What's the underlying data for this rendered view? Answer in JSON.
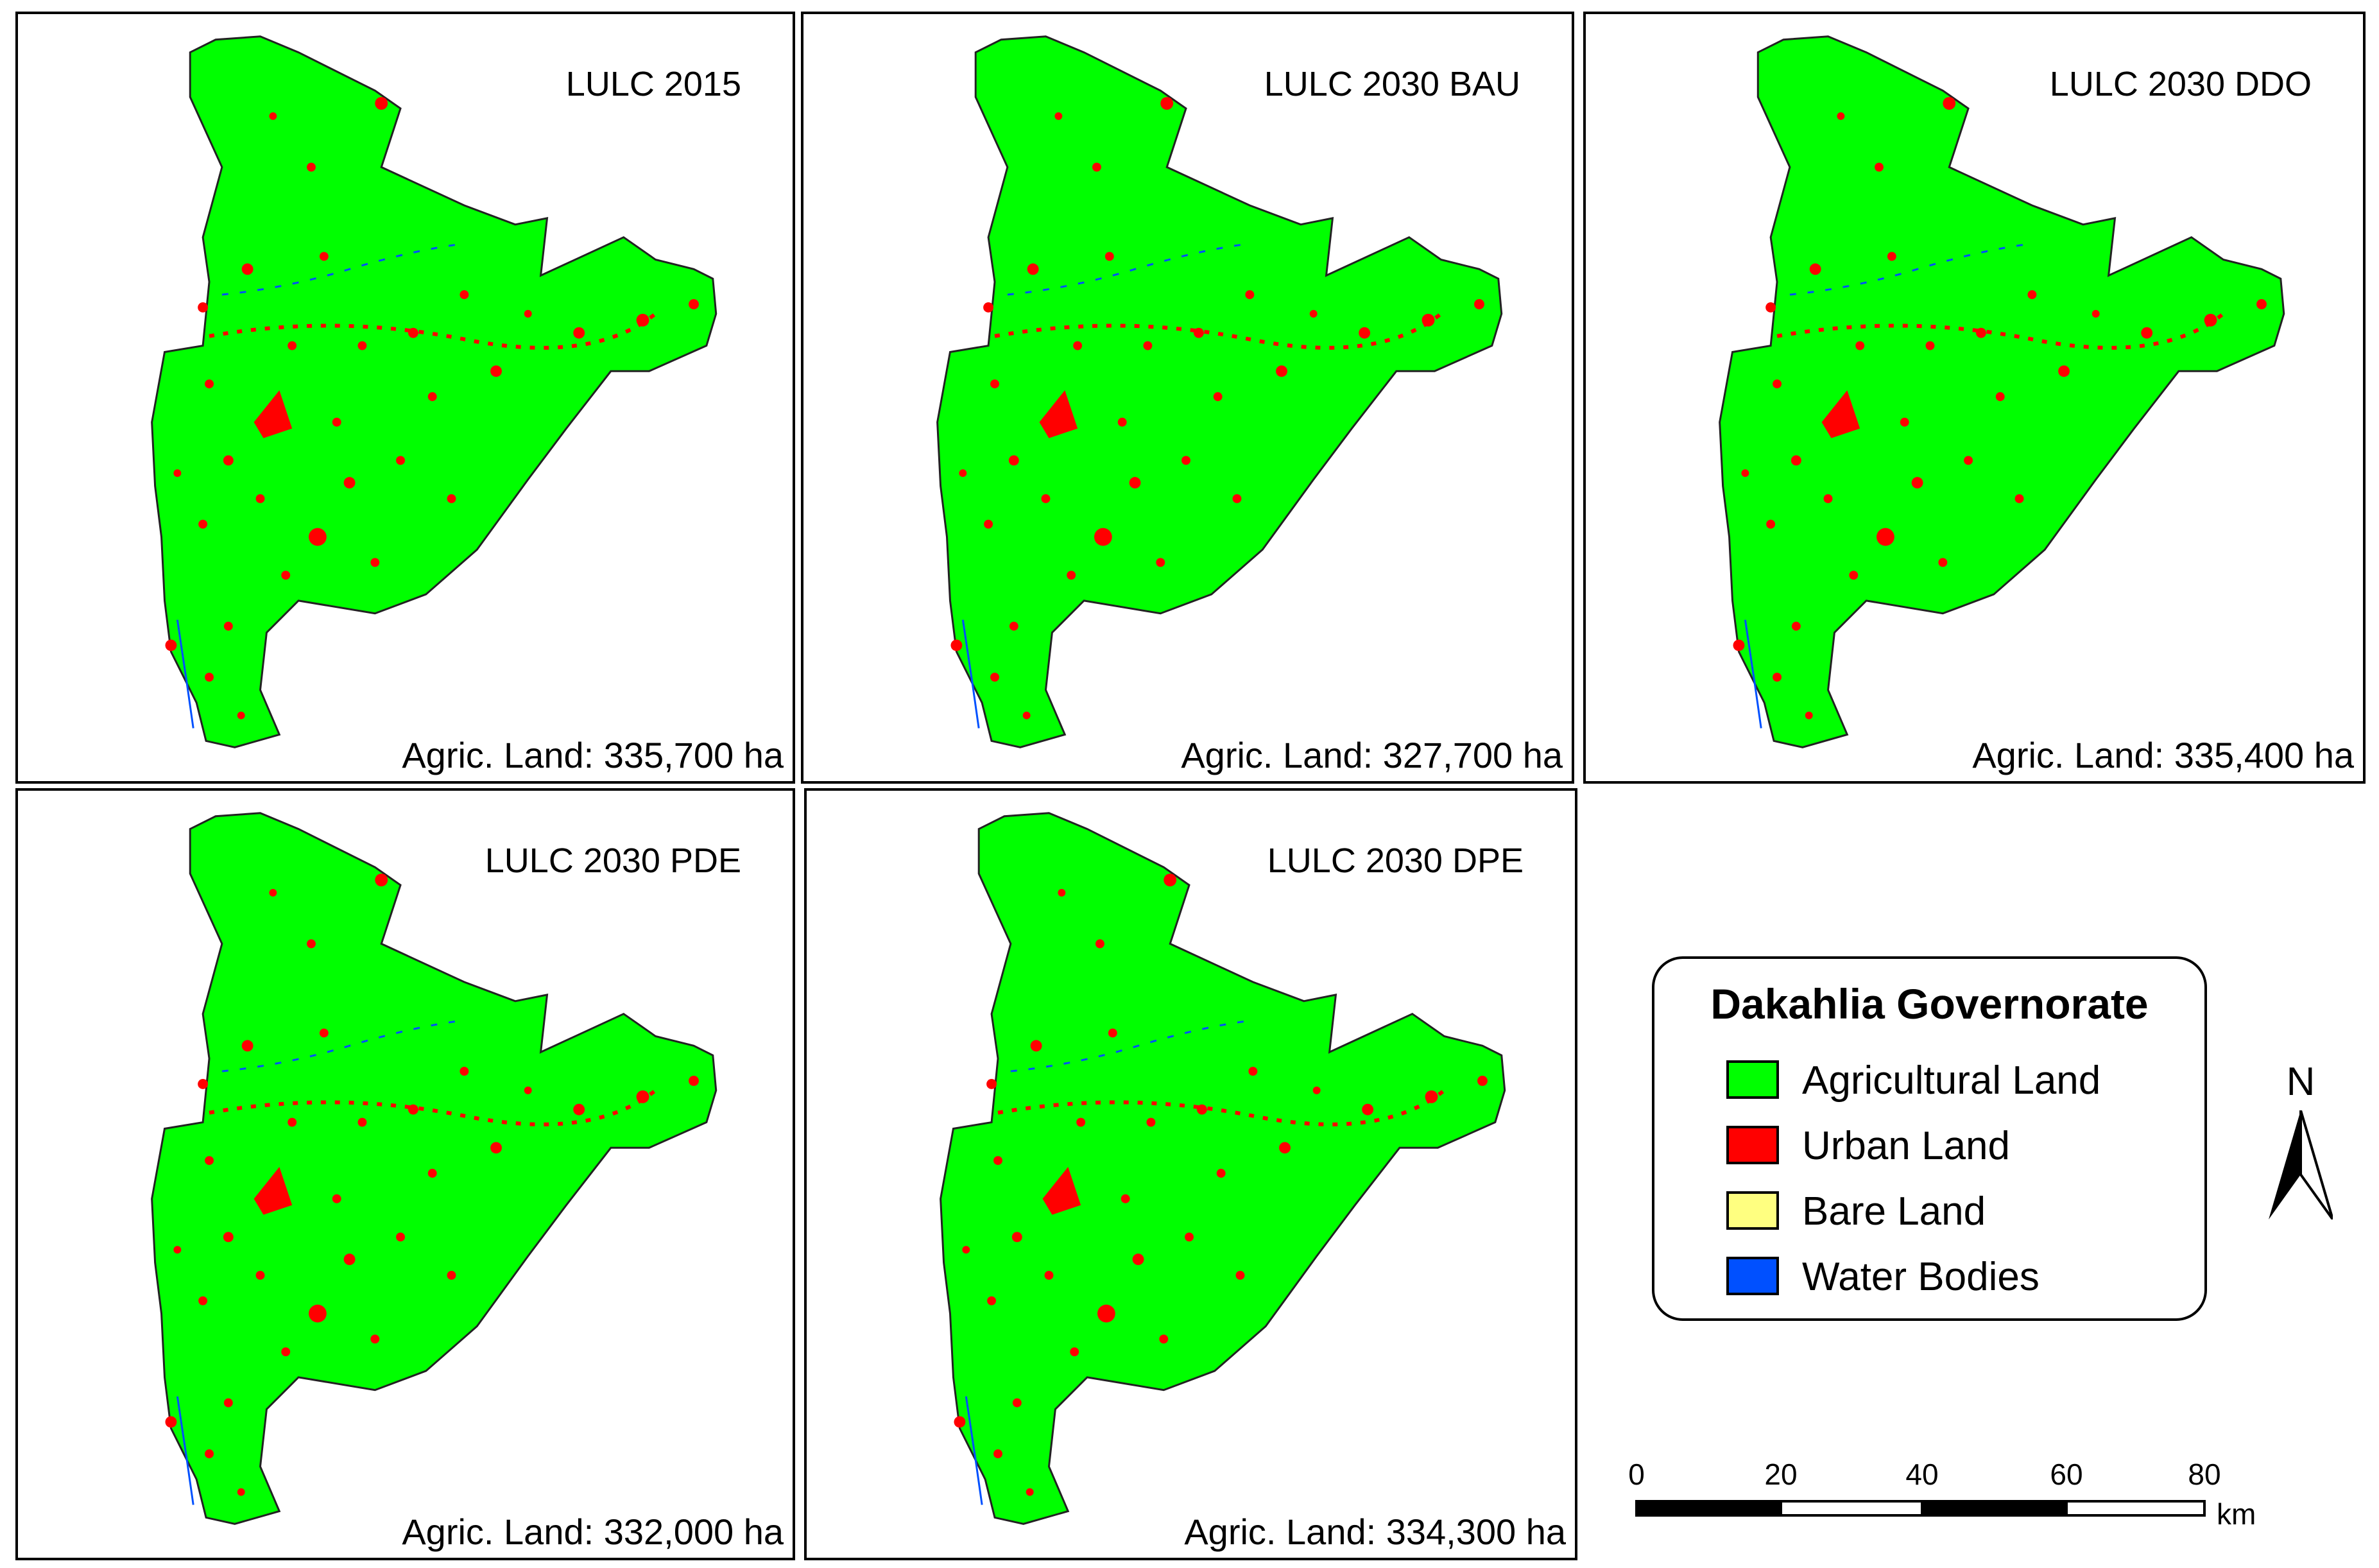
{
  "panels": [
    {
      "title": "LULC 2015",
      "stat": "Agric. Land: 335,700 ha"
    },
    {
      "title": "LULC 2030 BAU",
      "stat": "Agric. Land: 327,700 ha"
    },
    {
      "title": "LULC 2030 DDO",
      "stat": "Agric. Land: 335,400 ha"
    },
    {
      "title": "LULC 2030 PDE",
      "stat": "Agric. Land: 332,000 ha"
    },
    {
      "title": "LULC 2030 DPE",
      "stat": "Agric. Land: 334,300 ha"
    }
  ],
  "legend": {
    "title": "Dakahlia Governorate",
    "items": [
      {
        "label": "Agricultural Land",
        "color": "#00ff00"
      },
      {
        "label": "Urban Land",
        "color": "#ff0000"
      },
      {
        "label": "Bare Land",
        "color": "#ffff80"
      },
      {
        "label": "Water Bodies",
        "color": "#0050ff"
      }
    ]
  },
  "north_label": "N",
  "scale": {
    "ticks": [
      "0",
      "20",
      "40",
      "60",
      "80"
    ],
    "unit": "km"
  }
}
